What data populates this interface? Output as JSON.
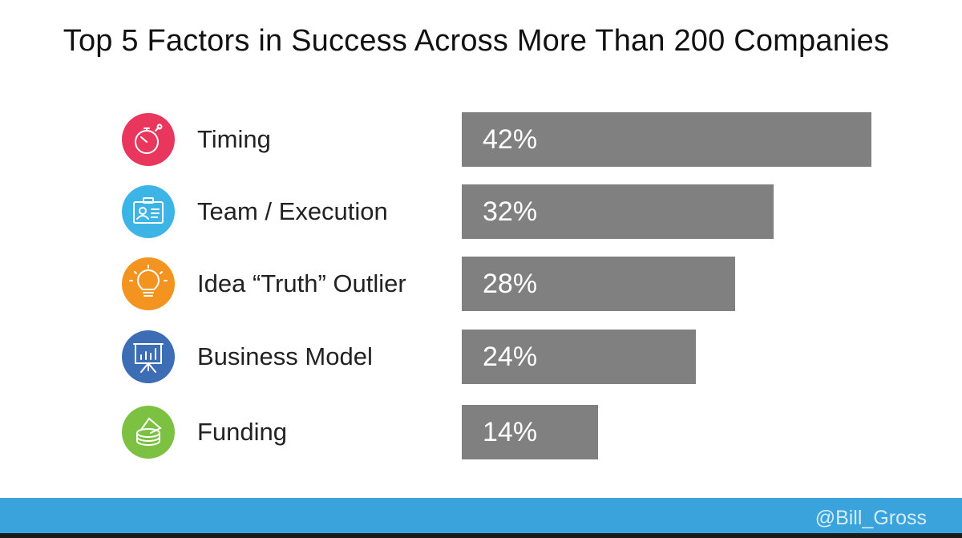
{
  "chart_data": {
    "type": "bar",
    "orientation": "horizontal",
    "title": "Top 5 Factors in Success Across More Than 200 Companies",
    "categories": [
      "Timing",
      "Team / Execution",
      "Idea “Truth” Outlier",
      "Business Model",
      "Funding"
    ],
    "values": [
      42,
      32,
      28,
      24,
      14
    ],
    "value_labels": [
      "42%",
      "32%",
      "28%",
      "24%",
      "14%"
    ],
    "icons": [
      "stopwatch-icon",
      "id-badge-icon",
      "lightbulb-icon",
      "presentation-chart-icon",
      "coin-stack-icon"
    ],
    "icon_colors": [
      "#e8365d",
      "#3cb4e6",
      "#f39420",
      "#3d6db5",
      "#7dc142"
    ],
    "bar_color": "#808080",
    "xlim": [
      0,
      42
    ],
    "grid": false,
    "legend": "none"
  },
  "footer": {
    "credit": "@Bill_Gross",
    "color": "#3aa3dc"
  }
}
